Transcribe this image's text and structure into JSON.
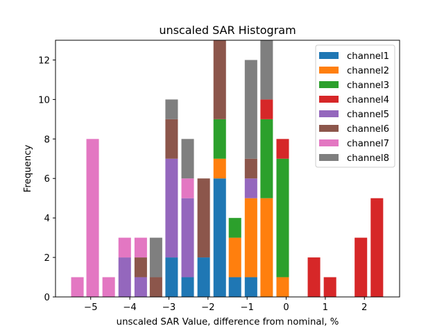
{
  "chart_data": {
    "type": "bar",
    "stacked": true,
    "title": "unscaled SAR Histogram",
    "xlabel": "unscaled SAR Value, difference from nominal, %",
    "ylabel": "Frequency",
    "xlim": [
      -5.9,
      2.9
    ],
    "ylim": [
      0,
      13
    ],
    "x_ticks": [
      -5,
      -4,
      -3,
      -2,
      -1,
      0,
      1,
      2
    ],
    "x_tick_labels": [
      "−5",
      "−4",
      "−3",
      "−2",
      "−1",
      "0",
      "1",
      "2"
    ],
    "y_ticks": [
      0,
      2,
      4,
      6,
      8,
      10,
      12
    ],
    "y_tick_labels": [
      "0",
      "2",
      "4",
      "6",
      "8",
      "10",
      "12"
    ],
    "bin_width": 0.32,
    "legend_position": "top-right",
    "x": [
      -5.34,
      -4.95,
      -4.54,
      -4.13,
      -3.72,
      -3.33,
      -2.93,
      -2.52,
      -2.11,
      -1.7,
      -1.31,
      -0.9,
      -0.5,
      -0.09,
      0.71,
      1.12,
      1.91,
      2.32
    ],
    "series": [
      {
        "name": "channel1",
        "color": "#1f77b4",
        "values": [
          0,
          0,
          0,
          0,
          0,
          0,
          2,
          1,
          2,
          6,
          1,
          1,
          0,
          0,
          0,
          0,
          0,
          0
        ]
      },
      {
        "name": "channel2",
        "color": "#ff7f0e",
        "values": [
          0,
          0,
          0,
          0,
          0,
          0,
          0,
          0,
          0,
          1,
          2,
          4,
          5,
          1,
          0,
          0,
          0,
          0
        ]
      },
      {
        "name": "channel3",
        "color": "#2ca02c",
        "values": [
          0,
          0,
          0,
          0,
          0,
          0,
          0,
          0,
          0,
          2,
          1,
          0,
          4,
          6,
          0,
          0,
          0,
          0
        ]
      },
      {
        "name": "channel4",
        "color": "#d62728",
        "values": [
          0,
          0,
          0,
          0,
          0,
          0,
          0,
          0,
          0,
          0,
          0,
          0,
          1,
          1,
          2,
          1,
          3,
          5
        ]
      },
      {
        "name": "channel5",
        "color": "#9467bd",
        "values": [
          0,
          0,
          0,
          2,
          1,
          0,
          5,
          4,
          0,
          0,
          0,
          1,
          0,
          0,
          0,
          0,
          0,
          0
        ]
      },
      {
        "name": "channel6",
        "color": "#8c564b",
        "values": [
          0,
          0,
          0,
          0,
          1,
          1,
          2,
          0,
          4,
          4,
          0,
          1,
          0,
          0,
          0,
          0,
          0,
          0
        ]
      },
      {
        "name": "channel7",
        "color": "#e377c2",
        "values": [
          1,
          8,
          1,
          1,
          1,
          0,
          0,
          1,
          0,
          0,
          0,
          0,
          0,
          0,
          0,
          0,
          0,
          0
        ]
      },
      {
        "name": "channel8",
        "color": "#7f7f7f",
        "values": [
          0,
          0,
          0,
          0,
          0,
          2,
          1,
          2,
          0,
          0,
          0,
          5,
          3,
          0,
          0,
          0,
          0,
          0
        ]
      }
    ],
    "grid": false
  }
}
